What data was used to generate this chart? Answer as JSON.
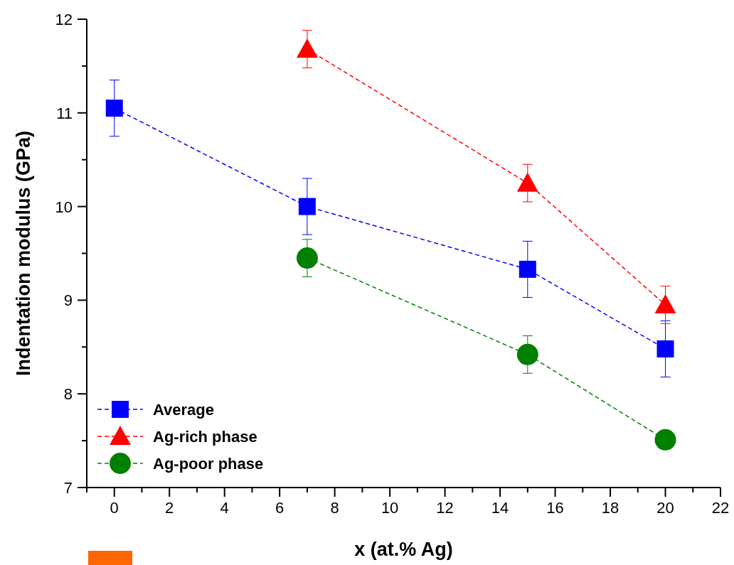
{
  "chart_data": {
    "type": "line",
    "xlabel": "x (at.% Ag)",
    "ylabel": "Indentation modulus (GPa)",
    "xlim": [
      -1,
      22
    ],
    "ylim": [
      7,
      12
    ],
    "xticks": [
      {
        "value": -1,
        "label": null
      },
      0,
      {
        "value": 1,
        "label": null
      },
      2,
      {
        "value": 3,
        "label": null
      },
      4,
      {
        "value": 5,
        "label": null
      },
      6,
      {
        "value": 7,
        "label": null
      },
      8,
      {
        "value": 9,
        "label": null
      },
      10,
      {
        "value": 11,
        "label": null
      },
      12,
      {
        "value": 13,
        "label": null
      },
      14,
      {
        "value": 15,
        "label": null
      },
      16,
      {
        "value": 17,
        "label": null
      },
      18,
      {
        "value": 19,
        "label": null
      },
      20,
      {
        "value": 21,
        "label": null
      },
      22
    ],
    "yticks": [
      7,
      {
        "value": 7.5,
        "label": null
      },
      8,
      {
        "value": 8.5,
        "label": null
      },
      9,
      {
        "value": 9.5,
        "label": null
      },
      10,
      {
        "value": 10.5,
        "label": null
      },
      11,
      {
        "value": 11.5,
        "label": null
      },
      12
    ],
    "grid": false,
    "legend": "bottom left",
    "line_style": "dashed",
    "series": [
      {
        "name": "Average",
        "color": "#0000ff",
        "marker": "square",
        "x": [
          0,
          7,
          15,
          20
        ],
        "values": [
          11.05,
          10.0,
          9.33,
          8.48
        ],
        "errors": [
          0.3,
          0.3,
          0.3,
          0.3
        ]
      },
      {
        "name": "Ag-rich phase",
        "color": "#ff0000",
        "marker": "triangle",
        "x": [
          7,
          15,
          20
        ],
        "values": [
          11.68,
          10.25,
          8.95
        ],
        "errors": [
          0.2,
          0.2,
          0.2
        ]
      },
      {
        "name": "Ag-poor phase",
        "color": "#008000",
        "marker": "circle",
        "x": [
          7,
          15,
          20
        ],
        "values": [
          9.45,
          8.42,
          7.51
        ],
        "errors": [
          0.2,
          0.2,
          null
        ]
      }
    ]
  }
}
